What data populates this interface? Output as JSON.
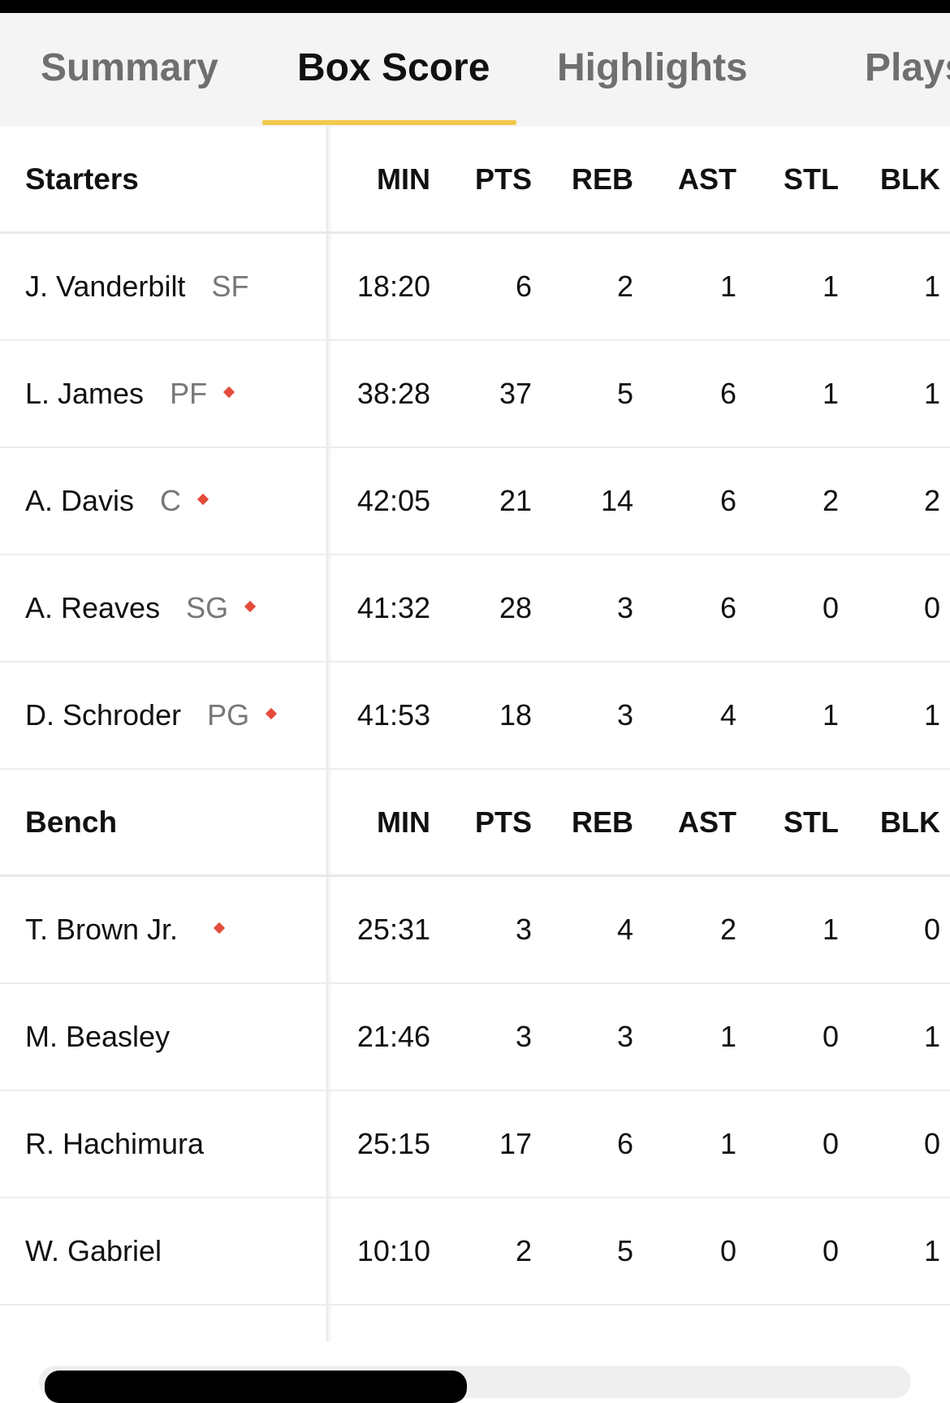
{
  "tabs": [
    {
      "label": "Summary",
      "active": false
    },
    {
      "label": "Box Score",
      "active": true
    },
    {
      "label": "Highlights",
      "active": false
    },
    {
      "label": "Plays",
      "active": false
    }
  ],
  "accent_color": "#f2c94c",
  "on_court_marker_color": "#e44b3b",
  "columns": [
    "MIN",
    "PTS",
    "REB",
    "AST",
    "STL",
    "BLK"
  ],
  "starters": {
    "title": "Starters",
    "players": [
      {
        "name": "J. Vanderbilt",
        "pos": "SF",
        "marker": false,
        "min": "18:20",
        "pts": "6",
        "reb": "2",
        "ast": "1",
        "stl": "1",
        "blk": "1"
      },
      {
        "name": "L. James",
        "pos": "PF",
        "marker": true,
        "min": "38:28",
        "pts": "37",
        "reb": "5",
        "ast": "6",
        "stl": "1",
        "blk": "1"
      },
      {
        "name": "A. Davis",
        "pos": "C",
        "marker": true,
        "min": "42:05",
        "pts": "21",
        "reb": "14",
        "ast": "6",
        "stl": "2",
        "blk": "2"
      },
      {
        "name": "A. Reaves",
        "pos": "SG",
        "marker": true,
        "min": "41:32",
        "pts": "28",
        "reb": "3",
        "ast": "6",
        "stl": "0",
        "blk": "0"
      },
      {
        "name": "D. Schroder",
        "pos": "PG",
        "marker": true,
        "min": "41:53",
        "pts": "18",
        "reb": "3",
        "ast": "4",
        "stl": "1",
        "blk": "1"
      }
    ]
  },
  "bench": {
    "title": "Bench",
    "players": [
      {
        "name": "T. Brown Jr.",
        "pos": "",
        "marker": true,
        "min": "25:31",
        "pts": "3",
        "reb": "4",
        "ast": "2",
        "stl": "1",
        "blk": "0"
      },
      {
        "name": "M. Beasley",
        "pos": "",
        "marker": false,
        "min": "21:46",
        "pts": "3",
        "reb": "3",
        "ast": "1",
        "stl": "0",
        "blk": "1"
      },
      {
        "name": "R. Hachimura",
        "pos": "",
        "marker": false,
        "min": "25:15",
        "pts": "17",
        "reb": "6",
        "ast": "1",
        "stl": "0",
        "blk": "0"
      },
      {
        "name": "W. Gabriel",
        "pos": "",
        "marker": false,
        "min": "10:10",
        "pts": "2",
        "reb": "5",
        "ast": "0",
        "stl": "0",
        "blk": "1"
      }
    ]
  }
}
